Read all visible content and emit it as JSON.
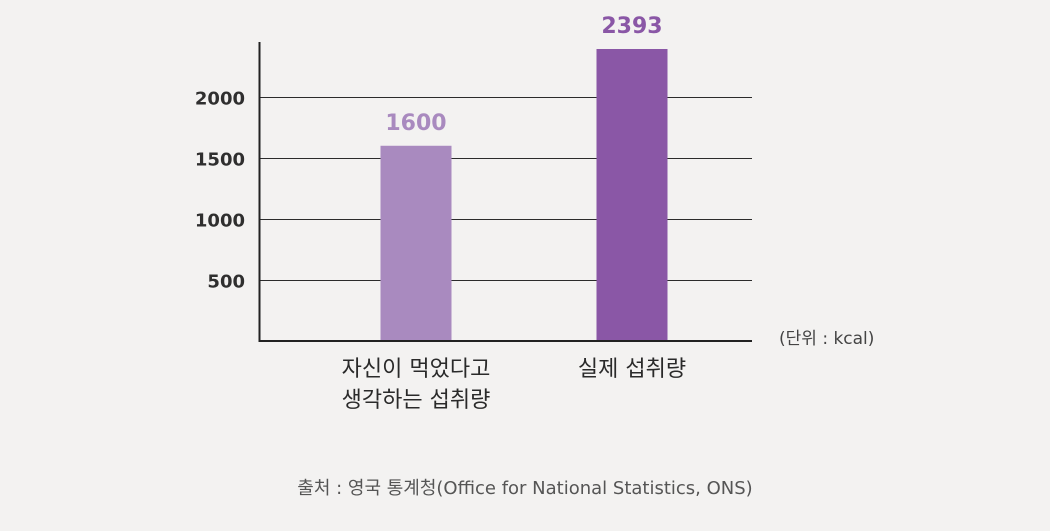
{
  "chart_data": {
    "type": "bar",
    "categories": [
      [
        "자신이 먹었다고",
        "생각하는 섭취량"
      ],
      [
        "실제 섭취량"
      ]
    ],
    "values": [
      1600,
      2393
    ],
    "yticks": [
      500,
      1000,
      1500,
      2000
    ],
    "ylim": [
      0,
      2393
    ],
    "grid": true,
    "unit": "(단위 : kcal)",
    "source": "출처 : 영국 통계청(Office for National Statistics, ONS)"
  },
  "colors": {
    "bars": [
      "#a98abf",
      "#8a57a6"
    ],
    "data_labels": [
      "#a98abf",
      "#8a57a6"
    ],
    "grid": "#2b2b2b",
    "axis": "#222222"
  }
}
